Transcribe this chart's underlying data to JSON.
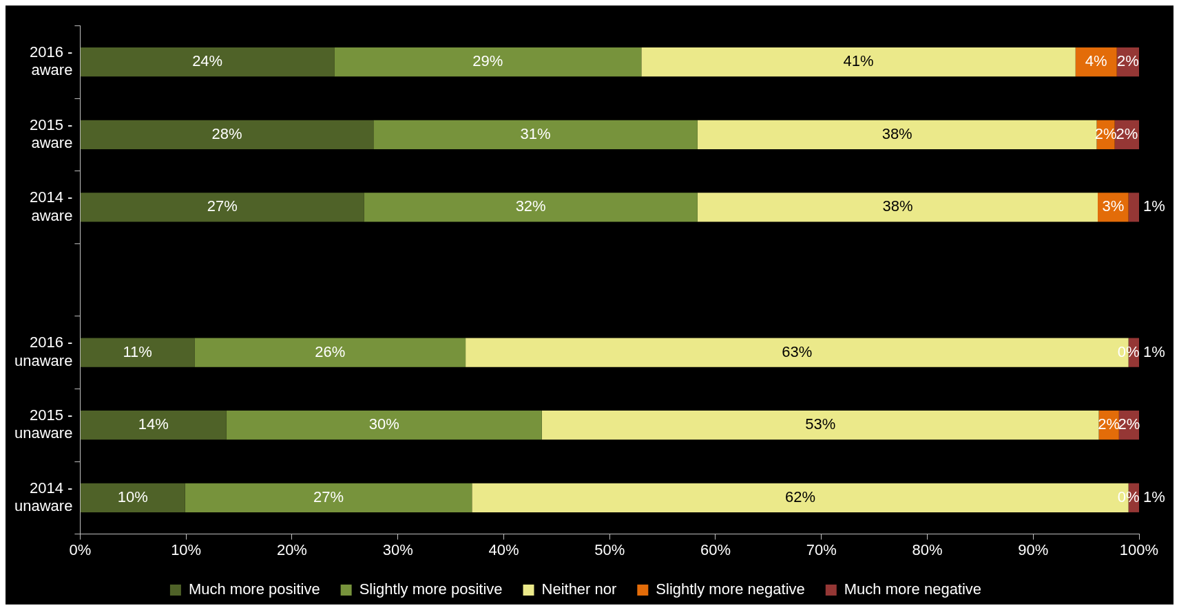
{
  "chart_data": {
    "type": "bar",
    "orientation": "horizontal",
    "stacked": true,
    "categories": [
      "2016 - aware",
      "2015 - aware",
      "2014 - aware",
      null,
      "2016 - unaware",
      "2015 - unaware",
      "2014 - unaware"
    ],
    "series": [
      {
        "name": "Much more positive",
        "color": "#4f6228",
        "values": [
          24.0,
          27.7,
          26.8,
          null,
          10.8,
          13.8,
          9.9
        ],
        "value_labels": [
          "24%",
          "28%",
          "27%",
          null,
          "11%",
          "14%",
          "10%"
        ]
      },
      {
        "name": "Slightly more positive",
        "color": "#77933c",
        "values": [
          29.0,
          30.6,
          31.5,
          null,
          25.6,
          29.8,
          27.1
        ],
        "value_labels": [
          "29%",
          "31%",
          "32%",
          null,
          "26%",
          "30%",
          "27%"
        ]
      },
      {
        "name": "Neither nor",
        "color": "#ebe98a",
        "values": [
          41.0,
          37.7,
          37.8,
          null,
          62.6,
          52.6,
          62.0
        ],
        "value_labels": [
          "41%",
          "38%",
          "38%",
          null,
          "63%",
          "53%",
          "62%"
        ]
      },
      {
        "name": "Slightly more negative",
        "color": "#e36c09",
        "values": [
          3.9,
          1.7,
          2.9,
          null,
          0.0,
          1.9,
          0.0
        ],
        "value_labels": [
          "4%",
          "2%",
          "3%",
          null,
          "0%",
          "2%",
          "0%"
        ]
      },
      {
        "name": "Much more negative",
        "color": "#953735",
        "values": [
          2.1,
          2.3,
          1.0,
          null,
          1.0,
          1.9,
          1.0
        ],
        "value_labels": [
          "2%",
          "2%",
          "1%",
          null,
          "1%",
          "2%",
          "1%"
        ]
      }
    ],
    "xlim": [
      0,
      100
    ],
    "xticks": [
      {
        "value": 0,
        "label": "0%"
      },
      {
        "value": 10,
        "label": "10%"
      },
      {
        "value": 20,
        "label": "20%"
      },
      {
        "value": 30,
        "label": "30%"
      },
      {
        "value": 40,
        "label": "40%"
      },
      {
        "value": 50,
        "label": "50%"
      },
      {
        "value": 60,
        "label": "60%"
      },
      {
        "value": 70,
        "label": "70%"
      },
      {
        "value": 80,
        "label": "80%"
      },
      {
        "value": 90,
        "label": "90%"
      },
      {
        "value": 100,
        "label": "100%"
      }
    ],
    "grid": false,
    "legend": "bottom"
  }
}
